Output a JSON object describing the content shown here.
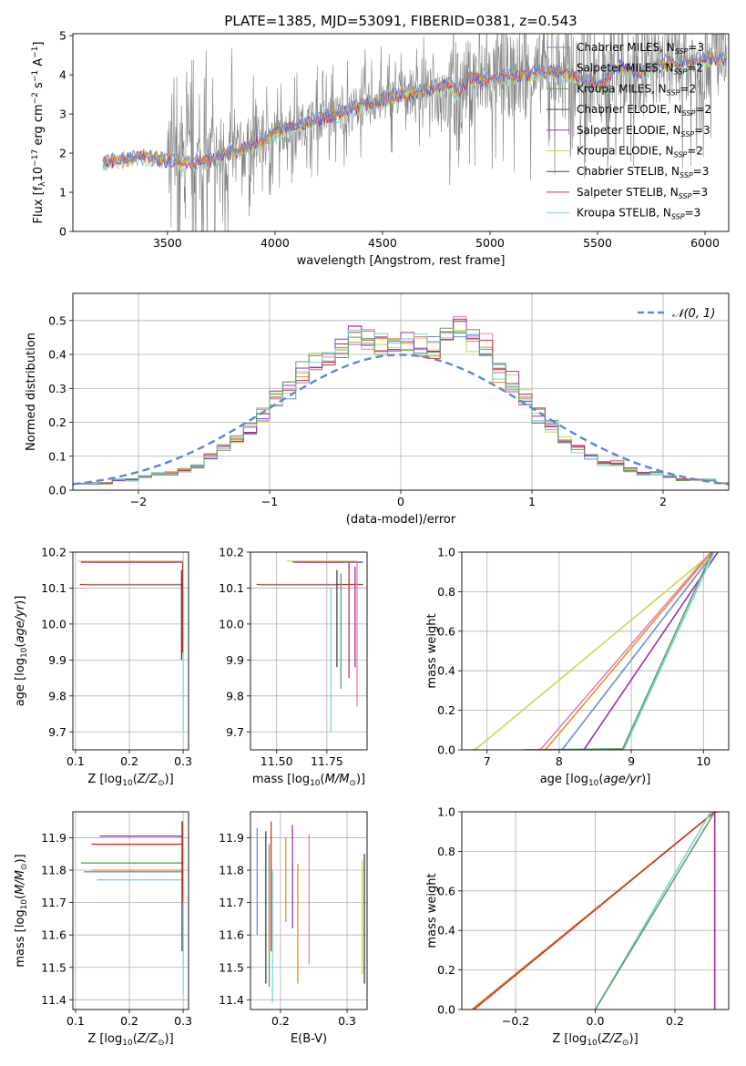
{
  "figure_title": "PLATE=1385, MJD=53091, FIBERID=0381, z=0.543",
  "colors": {
    "chabrier_miles": "#6a8fd6",
    "salpeter_miles": "#e8902a",
    "kroupa_miles": "#5fa05f",
    "chabrier_elodie": "#c0392b",
    "salpeter_elodie": "#9b30b0",
    "kroupa_elodie": "#8c5a3c",
    "chabrier_stelib": "#e87fb5",
    "salpeter_stelib": "#444444",
    "kroupa_stelib": "#c8d850",
    "extra": "#7fd4e0",
    "data_grey": "#808080",
    "gauss": "#5b86d6",
    "grid": "#b0b0b0"
  },
  "chart_data": [
    {
      "id": "spectrum",
      "type": "line",
      "title": "",
      "xlabel": "wavelength [Angstrom, rest frame]",
      "ylabel": "Flux [f_λ 10^-17 erg cm^-2 s^-1 A^-1]",
      "xlim": [
        3060,
        6110
      ],
      "ylim": [
        0,
        5.05
      ],
      "xticks": [
        3500,
        4000,
        4500,
        5000,
        5500,
        6000
      ],
      "yticks": [
        0,
        1,
        2,
        3,
        4,
        5
      ],
      "grid": false,
      "legend_position": "upper-right",
      "legend": [
        {
          "label": "Chabrier MILES, N_SSP=3",
          "color_key": "chabrier_miles"
        },
        {
          "label": "Salpeter MILES, N_SSP=2",
          "color_key": "salpeter_miles"
        },
        {
          "label": "Kroupa MILES, N_SSP=2",
          "color_key": "kroupa_miles"
        },
        {
          "label": "Chabrier ELODIE, N_SSP=2",
          "color_key": "salpeter_stelib"
        },
        {
          "label": "Salpeter ELODIE, N_SSP=3",
          "color_key": "salpeter_elodie"
        },
        {
          "label": "Kroupa ELODIE, N_SSP=2",
          "color_key": "kroupa_stelib"
        },
        {
          "label": "Chabrier STELIB, N_SSP=3",
          "color_key": "salpeter_stelib"
        },
        {
          "label": "Salpeter STELIB, N_SSP=3",
          "color_key": "chabrier_elodie"
        },
        {
          "label": "Kroupa STELIB, N_SSP=3",
          "color_key": "extra"
        }
      ],
      "model_continuum": {
        "x": [
          3200,
          3300,
          3400,
          3500,
          3600,
          3700,
          3800,
          3900,
          4000,
          4100,
          4200,
          4300,
          4400,
          4500,
          4600,
          4700,
          4800,
          4850,
          4900,
          5000,
          5100,
          5200,
          5300,
          5400,
          5500,
          5600,
          5700,
          5800,
          5900,
          6000
        ],
        "y": [
          1.75,
          1.85,
          1.9,
          1.8,
          1.75,
          1.8,
          2.0,
          2.2,
          2.5,
          2.7,
          2.85,
          3.0,
          3.2,
          3.35,
          3.5,
          3.6,
          3.75,
          3.55,
          3.9,
          3.85,
          3.95,
          4.0,
          4.1,
          3.95,
          3.7,
          4.2,
          4.05,
          4.3,
          4.3,
          4.4
        ]
      }
    },
    {
      "id": "residuals",
      "type": "histogram",
      "xlabel": "(data-model)/error",
      "ylabel": "Normed distribution",
      "xlim": [
        -2.5,
        2.5
      ],
      "ylim": [
        0,
        0.58
      ],
      "xticks": [
        -2,
        -1,
        0,
        1,
        2
      ],
      "yticks": [
        0.0,
        0.1,
        0.2,
        0.3,
        0.4,
        0.5
      ],
      "grid": true,
      "legend_position": "upper-right",
      "legend": [
        {
          "label": "𝒩(0, 1)",
          "color_key": "gauss"
        }
      ],
      "bin_width": 0.1,
      "base_values": [
        0.02,
        0.02,
        0.02,
        0.03,
        0.03,
        0.04,
        0.05,
        0.05,
        0.06,
        0.07,
        0.1,
        0.13,
        0.15,
        0.18,
        0.22,
        0.27,
        0.3,
        0.35,
        0.38,
        0.4,
        0.42,
        0.46,
        0.45,
        0.43,
        0.44,
        0.44,
        0.43,
        0.42,
        0.46,
        0.48,
        0.44,
        0.43,
        0.35,
        0.32,
        0.27,
        0.22,
        0.19,
        0.15,
        0.12,
        0.1,
        0.08,
        0.08,
        0.06,
        0.05,
        0.05,
        0.04,
        0.03,
        0.03,
        0.03,
        0.02
      ]
    },
    {
      "id": "age_vs_Z",
      "type": "line",
      "xlabel": "Z [log10(Z/Z⊙)]",
      "ylabel": "age [log10(age/yr)]",
      "xlim": [
        0.095,
        0.31
      ],
      "ylim": [
        9.65,
        10.2
      ],
      "xticks": [
        0.1,
        0.2,
        0.3
      ],
      "yticks": [
        9.7,
        9.8,
        9.9,
        10.0,
        10.1,
        10.2
      ],
      "grid": true,
      "h_segments": [
        {
          "y": 10.175,
          "x1": 0.105,
          "x2": 0.3,
          "color_key": "kroupa_stelib"
        },
        {
          "y": 10.172,
          "x1": 0.11,
          "x2": 0.3,
          "color_key": "salpeter_elodie"
        },
        {
          "y": 10.11,
          "x1": 0.108,
          "x2": 0.3,
          "color_key": "chabrier_elodie"
        },
        {
          "y": 10.108,
          "x1": 0.12,
          "x2": 0.3,
          "color_key": "extra"
        }
      ],
      "v_segments": [
        {
          "x": 0.297,
          "y1": 9.9,
          "y2": 10.15,
          "color_key": "salpeter_stelib"
        },
        {
          "x": 0.3,
          "y1": 9.7,
          "y2": 10.1,
          "color_key": "extra"
        },
        {
          "x": 0.299,
          "y1": 9.92,
          "y2": 10.17,
          "color_key": "chabrier_elodie"
        }
      ]
    },
    {
      "id": "age_vs_mass",
      "type": "line",
      "xlabel": "mass [log10(M/M⊙)]",
      "ylabel": "",
      "xlim": [
        11.37,
        11.95
      ],
      "ylim": [
        9.65,
        10.2
      ],
      "xticks": [
        11.5,
        11.75
      ],
      "yticks": [
        9.7,
        9.8,
        9.9,
        10.0,
        10.1,
        10.2
      ],
      "grid": true,
      "h_segments": [
        {
          "y": 10.175,
          "x1": 11.55,
          "x2": 11.9,
          "color_key": "kroupa_stelib"
        },
        {
          "y": 10.172,
          "x1": 11.58,
          "x2": 11.93,
          "color_key": "salpeter_elodie"
        },
        {
          "y": 10.11,
          "x1": 11.4,
          "x2": 11.93,
          "color_key": "chabrier_elodie"
        },
        {
          "y": 10.108,
          "x1": 11.42,
          "x2": 11.8,
          "color_key": "extra"
        }
      ],
      "v_segments": [
        {
          "x": 11.77,
          "y1": 9.7,
          "y2": 10.1,
          "color_key": "extra"
        },
        {
          "x": 11.8,
          "y1": 9.88,
          "y2": 10.15,
          "color_key": "salpeter_stelib"
        },
        {
          "x": 11.82,
          "y1": 9.82,
          "y2": 10.14,
          "color_key": "kroupa_miles"
        },
        {
          "x": 11.86,
          "y1": 9.85,
          "y2": 10.17,
          "color_key": "chabrier_elodie"
        },
        {
          "x": 11.89,
          "y1": 9.88,
          "y2": 10.16,
          "color_key": "salpeter_elodie"
        },
        {
          "x": 11.9,
          "y1": 9.77,
          "y2": 10.17,
          "color_key": "chabrier_stelib"
        }
      ]
    },
    {
      "id": "mass_weight_vs_age",
      "type": "line",
      "xlabel": "age [log10(age/yr)]",
      "ylabel": "mass weight",
      "xlim": [
        6.65,
        10.35
      ],
      "ylim": [
        0,
        1
      ],
      "xticks": [
        7,
        8,
        9,
        10
      ],
      "yticks": [
        0.0,
        0.2,
        0.4,
        0.6,
        0.8,
        1.0
      ],
      "grid": true,
      "series": [
        {
          "color_key": "kroupa_stelib",
          "x": [
            6.8,
            6.85,
            10.1,
            10.15
          ],
          "y": [
            0,
            0.005,
            0.99,
            1.0
          ]
        },
        {
          "color_key": "chabrier_stelib",
          "x": [
            7.7,
            7.75,
            10.1
          ],
          "y": [
            0,
            0.005,
            1.0
          ]
        },
        {
          "color_key": "salpeter_miles",
          "x": [
            7.78,
            7.82,
            10.12
          ],
          "y": [
            0,
            0.005,
            1.0
          ]
        },
        {
          "color_key": "chabrier_miles",
          "x": [
            8.0,
            8.05,
            10.15
          ],
          "y": [
            0,
            0.005,
            1.0
          ]
        },
        {
          "color_key": "salpeter_elodie",
          "x": [
            8.3,
            8.35,
            10.2
          ],
          "y": [
            0,
            0.005,
            1.0
          ]
        },
        {
          "color_key": "extra",
          "x": [
            7.5,
            8.9,
            10.15
          ],
          "y": [
            0,
            0.005,
            1.0
          ]
        },
        {
          "color_key": "kroupa_miles",
          "x": [
            7.5,
            8.88,
            10.12
          ],
          "y": [
            0,
            0.005,
            1.0
          ]
        }
      ]
    },
    {
      "id": "mass_vs_Z",
      "type": "line",
      "xlabel": "Z [log10(Z/Z⊙)]",
      "ylabel": "mass [log10(M/M⊙)]",
      "xlim": [
        0.095,
        0.31
      ],
      "ylim": [
        11.37,
        11.98
      ],
      "xticks": [
        0.1,
        0.2,
        0.3
      ],
      "yticks": [
        11.4,
        11.5,
        11.6,
        11.7,
        11.8,
        11.9
      ],
      "grid": true,
      "h_segments": [
        {
          "y": 11.905,
          "x1": 0.145,
          "x2": 0.3,
          "color_key": "salpeter_elodie"
        },
        {
          "y": 11.88,
          "x1": 0.13,
          "x2": 0.3,
          "color_key": "chabrier_elodie"
        },
        {
          "y": 11.822,
          "x1": 0.11,
          "x2": 0.3,
          "color_key": "kroupa_miles"
        },
        {
          "y": 11.8,
          "x1": 0.13,
          "x2": 0.3,
          "color_key": "salpeter_miles"
        },
        {
          "y": 11.795,
          "x1": 0.115,
          "x2": 0.3,
          "color_key": "chabrier_miles"
        },
        {
          "y": 11.77,
          "x1": 0.14,
          "x2": 0.3,
          "color_key": "extra"
        }
      ],
      "v_segments": [
        {
          "x": 0.298,
          "y1": 11.55,
          "y2": 11.95,
          "color_key": "salpeter_stelib"
        },
        {
          "x": 0.3,
          "y1": 11.42,
          "y2": 11.8,
          "color_key": "extra"
        },
        {
          "x": 0.299,
          "y1": 11.7,
          "y2": 11.95,
          "color_key": "chabrier_elodie"
        }
      ]
    },
    {
      "id": "mass_vs_ebv",
      "type": "line",
      "xlabel": "E(B-V)",
      "ylabel": "",
      "xlim": [
        0.155,
        0.33
      ],
      "ylim": [
        11.37,
        11.98
      ],
      "xticks": [
        0.2,
        0.3
      ],
      "yticks": [
        11.4,
        11.5,
        11.6,
        11.7,
        11.8,
        11.9
      ],
      "grid": true,
      "v_segments": [
        {
          "x": 0.165,
          "y1": 11.6,
          "y2": 11.93,
          "color_key": "chabrier_miles"
        },
        {
          "x": 0.178,
          "y1": 11.45,
          "y2": 11.92,
          "color_key": "salpeter_stelib"
        },
        {
          "x": 0.183,
          "y1": 11.44,
          "y2": 11.88,
          "color_key": "kroupa_miles"
        },
        {
          "x": 0.186,
          "y1": 11.55,
          "y2": 11.95,
          "color_key": "chabrier_elodie"
        },
        {
          "x": 0.188,
          "y1": 11.39,
          "y2": 11.8,
          "color_key": "extra"
        },
        {
          "x": 0.208,
          "y1": 11.64,
          "y2": 11.9,
          "color_key": "salpeter_miles"
        },
        {
          "x": 0.218,
          "y1": 11.62,
          "y2": 11.94,
          "color_key": "salpeter_elodie"
        },
        {
          "x": 0.226,
          "y1": 11.45,
          "y2": 11.82,
          "color_key": "salpeter_miles"
        },
        {
          "x": 0.243,
          "y1": 11.51,
          "y2": 11.91,
          "color_key": "chabrier_stelib"
        },
        {
          "x": 0.323,
          "y1": 11.48,
          "y2": 11.83,
          "color_key": "kroupa_stelib"
        },
        {
          "x": 0.326,
          "y1": 11.45,
          "y2": 11.85,
          "color_key": "salpeter_stelib"
        }
      ]
    },
    {
      "id": "mass_weight_vs_Z",
      "type": "line",
      "xlabel": "Z [log10(Z/Z⊙)]",
      "ylabel": "mass weight",
      "xlim": [
        -0.335,
        0.335
      ],
      "ylim": [
        0,
        1
      ],
      "xticks": [
        -0.2,
        0.0,
        0.2
      ],
      "yticks": [
        0.0,
        0.2,
        0.4,
        0.6,
        0.8,
        1.0
      ],
      "grid": true,
      "series": [
        {
          "color_key": "salpeter_miles",
          "x": [
            -0.31,
            0.3
          ],
          "y": [
            0,
            1.0
          ]
        },
        {
          "color_key": "chabrier_elodie",
          "x": [
            -0.305,
            0.3
          ],
          "y": [
            0,
            1.0
          ]
        },
        {
          "color_key": "extra",
          "x": [
            0.0,
            0.29
          ],
          "y": [
            0,
            1.0
          ]
        },
        {
          "color_key": "kroupa_miles",
          "x": [
            0.0,
            0.3
          ],
          "y": [
            0,
            1.0
          ]
        },
        {
          "color_key": "salpeter_elodie",
          "x": [
            0.3,
            0.3,
            0.31
          ],
          "y": [
            0,
            1.0,
            1.0
          ]
        }
      ]
    }
  ]
}
